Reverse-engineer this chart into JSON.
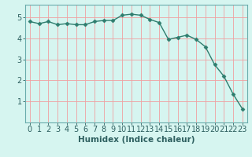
{
  "x": [
    0,
    1,
    2,
    3,
    4,
    5,
    6,
    7,
    8,
    9,
    10,
    11,
    12,
    13,
    14,
    15,
    16,
    17,
    18,
    19,
    20,
    21,
    22,
    23
  ],
  "y": [
    4.8,
    4.7,
    4.8,
    4.65,
    4.7,
    4.65,
    4.65,
    4.8,
    4.85,
    4.85,
    5.1,
    5.15,
    5.1,
    4.9,
    4.75,
    3.95,
    4.05,
    4.15,
    3.95,
    3.6,
    2.75,
    2.2,
    1.35,
    0.65
  ],
  "line_color": "#2e7d6e",
  "marker": "D",
  "marker_size": 2.5,
  "bg_color": "#d6f5f0",
  "grid_color": "#f0a0a0",
  "xlabel": "Humidex (Indice chaleur)",
  "xlim": [
    -0.5,
    23.5
  ],
  "ylim": [
    0,
    5.6
  ],
  "yticks": [
    1,
    2,
    3,
    4,
    5
  ],
  "xticks": [
    0,
    1,
    2,
    3,
    4,
    5,
    6,
    7,
    8,
    9,
    10,
    11,
    12,
    13,
    14,
    15,
    16,
    17,
    18,
    19,
    20,
    21,
    22,
    23
  ],
  "label_fontsize": 7.5,
  "tick_fontsize": 7,
  "text_color": "#2e6060",
  "spine_color": "#6aacac"
}
